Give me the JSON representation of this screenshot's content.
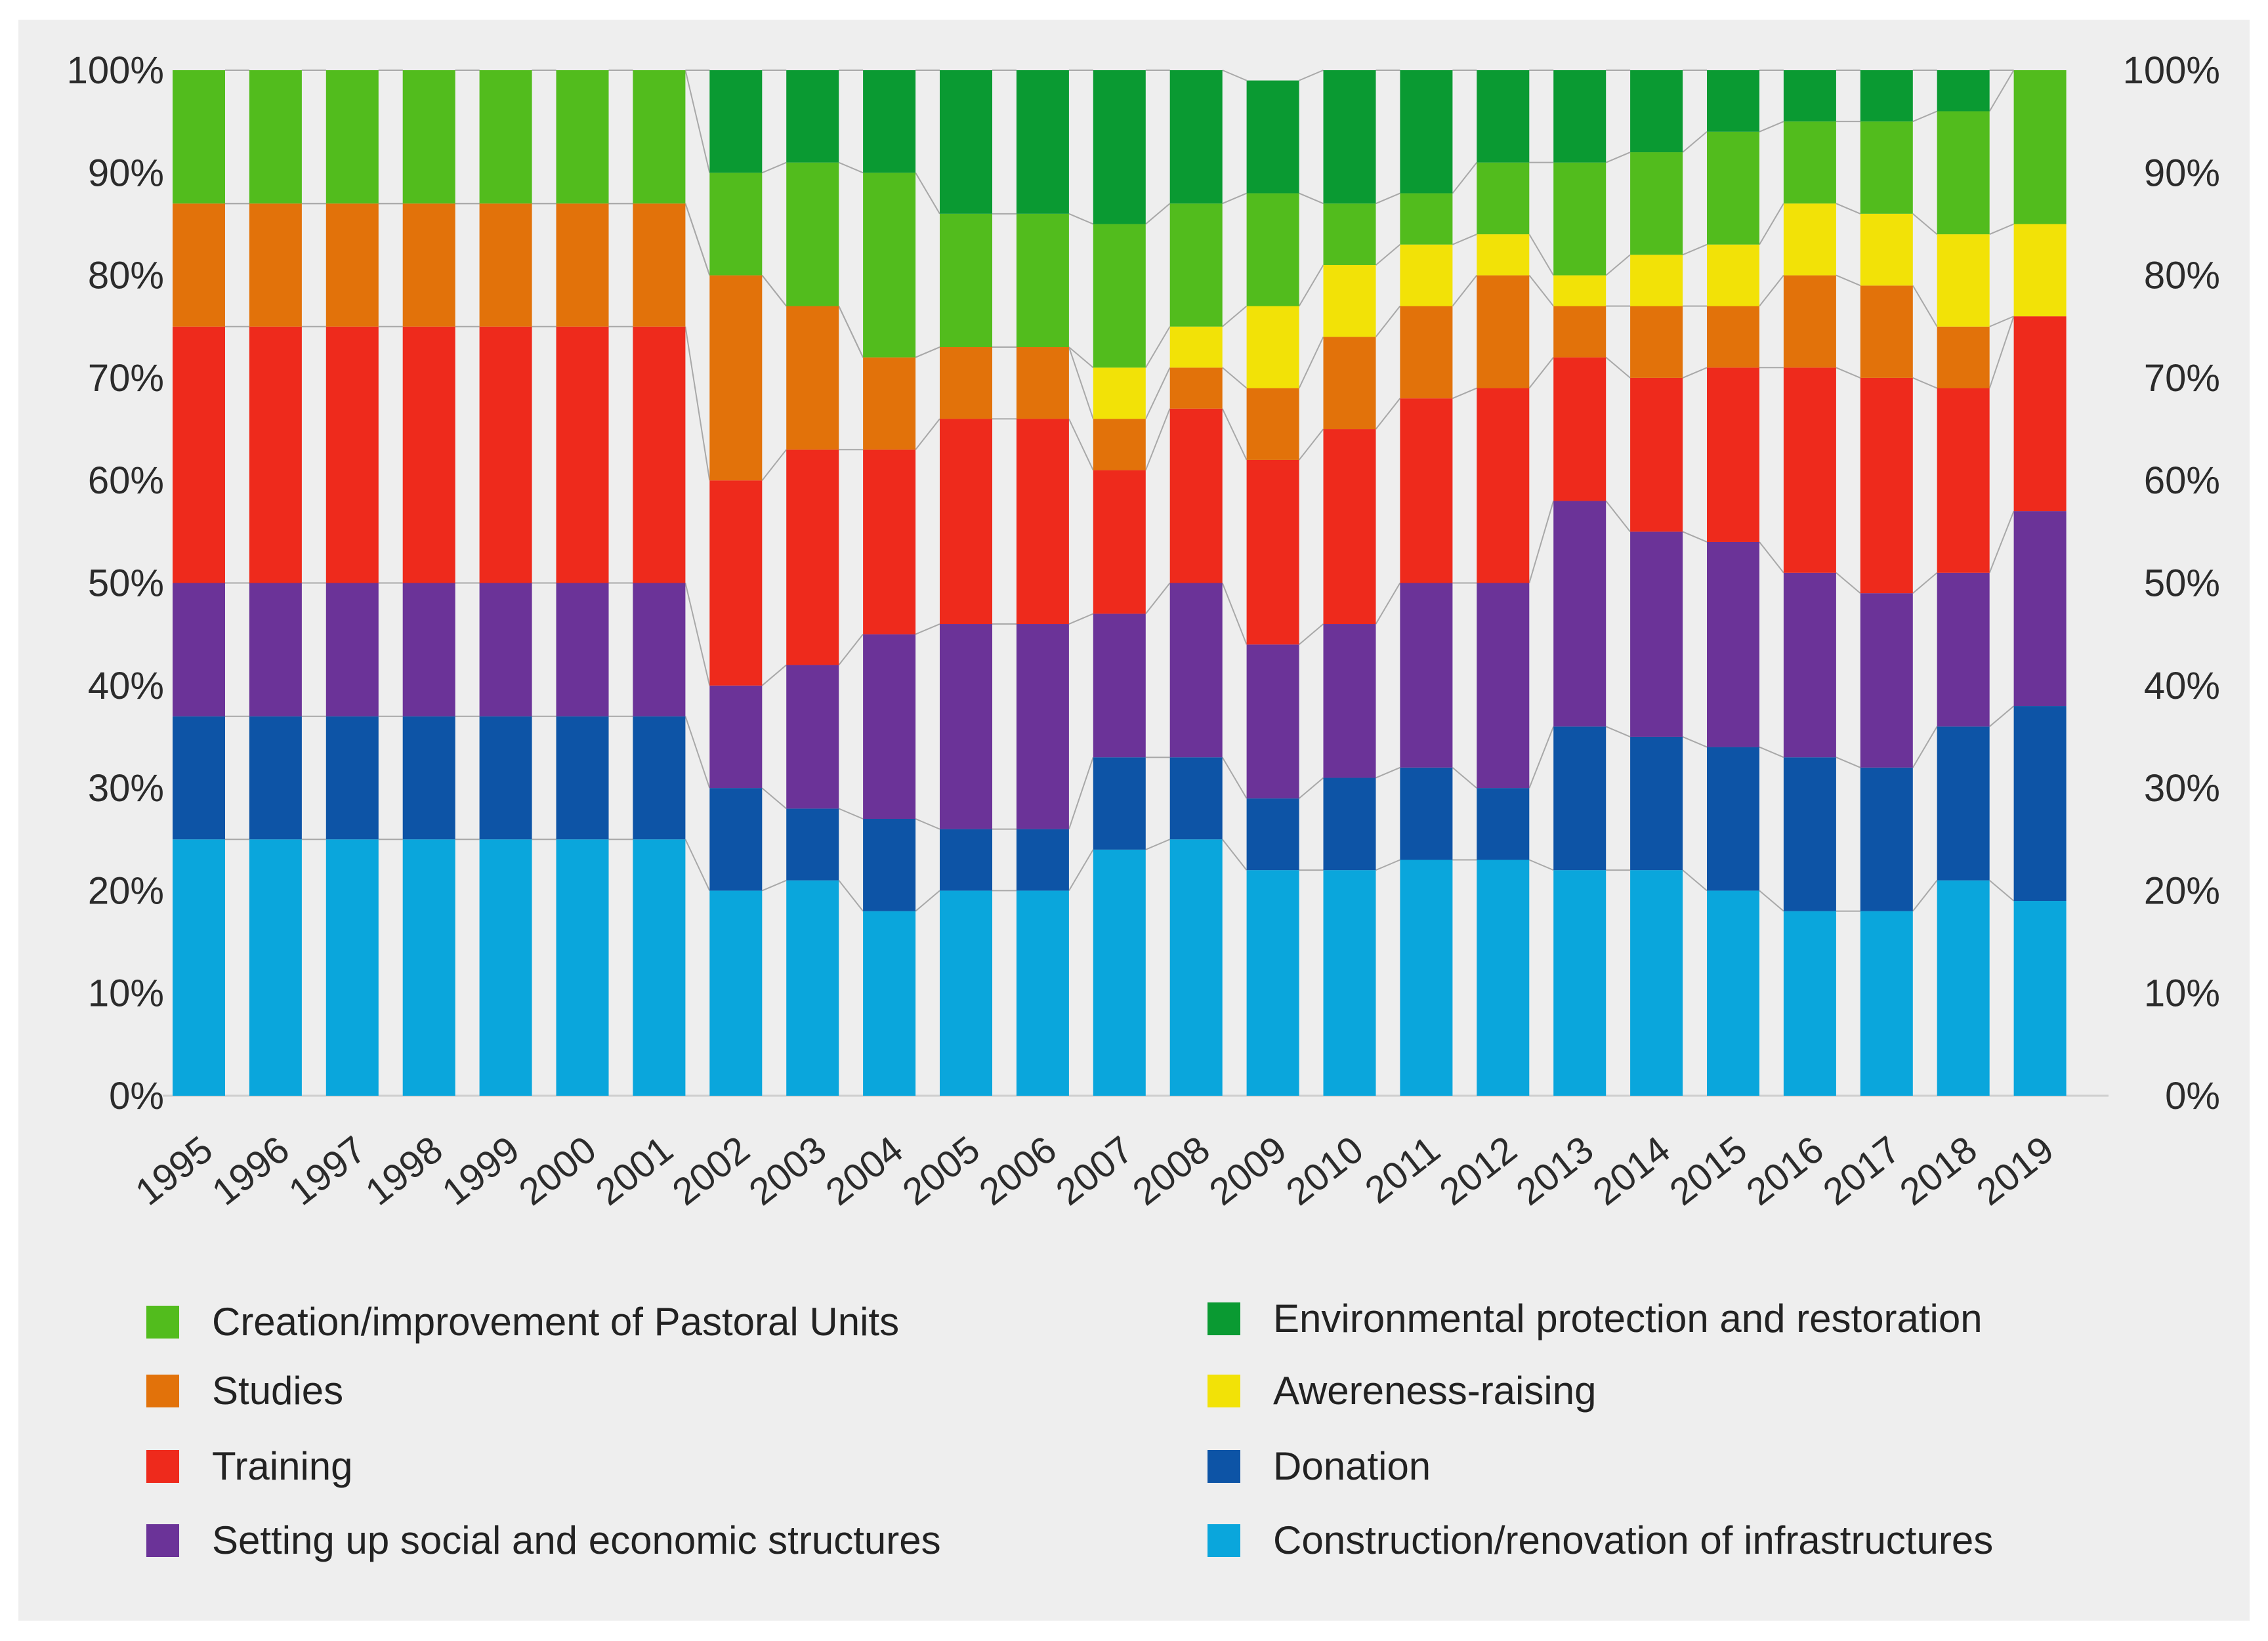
{
  "chart_data": {
    "type": "bar",
    "stacked": true,
    "normalized": true,
    "categories": [
      "1995",
      "1996",
      "1997",
      "1998",
      "1999",
      "2000",
      "2001",
      "2002",
      "2003",
      "2004",
      "2005",
      "2006",
      "2007",
      "2008",
      "2009",
      "2010",
      "2011",
      "2012",
      "2013",
      "2014",
      "2015",
      "2016",
      "2017",
      "2018",
      "2019"
    ],
    "ytick_labels": [
      "0%",
      "10%",
      "20%",
      "30%",
      "40%",
      "50%",
      "60%",
      "70%",
      "80%",
      "90%",
      "100%"
    ],
    "ylim": [
      0,
      100
    ],
    "series": [
      {
        "name": "Construction/renovation of infrastructures",
        "color": "#0aa6dc",
        "values": [
          25,
          25,
          25,
          25,
          25,
          25,
          25,
          20,
          21,
          18,
          20,
          20,
          24,
          25,
          22,
          22,
          23,
          23,
          22,
          22,
          20,
          18,
          18,
          21,
          19
        ]
      },
      {
        "name": "Donation",
        "color": "#0d54a6",
        "values": [
          12,
          12,
          12,
          12,
          12,
          12,
          12,
          10,
          7,
          9,
          6,
          6,
          9,
          8,
          7,
          9,
          9,
          7,
          14,
          13,
          14,
          15,
          14,
          15,
          19
        ]
      },
      {
        "name": "Setting up social and economic structures",
        "color": "#6b3398",
        "values": [
          13,
          13,
          13,
          13,
          13,
          13,
          13,
          10,
          14,
          18,
          20,
          20,
          14,
          17,
          15,
          15,
          18,
          20,
          22,
          20,
          20,
          18,
          17,
          15,
          19
        ]
      },
      {
        "name": "Training",
        "color": "#ee2a1c",
        "values": [
          25,
          25,
          25,
          25,
          25,
          25,
          25,
          20,
          21,
          18,
          20,
          20,
          14,
          17,
          18,
          19,
          18,
          19,
          14,
          15,
          17,
          20,
          21,
          18,
          19
        ]
      },
      {
        "name": "Studies",
        "color": "#e2720a",
        "values": [
          12,
          12,
          12,
          12,
          12,
          12,
          12,
          20,
          14,
          9,
          7,
          7,
          5,
          4,
          7,
          9,
          9,
          11,
          5,
          7,
          6,
          9,
          9,
          6,
          0
        ]
      },
      {
        "name": "Awereness-raising",
        "color": "#f2e207",
        "values": [
          0,
          0,
          0,
          0,
          0,
          0,
          0,
          0,
          0,
          0,
          0,
          0,
          5,
          4,
          8,
          7,
          6,
          4,
          3,
          5,
          6,
          7,
          7,
          9,
          9
        ]
      },
      {
        "name": "Creation/improvement of Pastoral Units",
        "color": "#52bc1d",
        "values": [
          13,
          13,
          13,
          13,
          13,
          13,
          13,
          10,
          14,
          18,
          13,
          13,
          14,
          12,
          11,
          6,
          5,
          7,
          11,
          10,
          11,
          8,
          9,
          12,
          15
        ]
      },
      {
        "name": "Environmental protection and restoration",
        "color": "#0a9a32",
        "values": [
          0,
          0,
          0,
          0,
          0,
          0,
          0,
          10,
          9,
          10,
          14,
          14,
          15,
          13,
          11,
          13,
          12,
          9,
          9,
          8,
          6,
          5,
          5,
          4,
          0
        ]
      }
    ],
    "legend_position": "bottom"
  },
  "legend": {
    "left": [
      {
        "label": "Creation/improvement of Pastoral Units",
        "color": "#52bc1d"
      },
      {
        "label": "Studies",
        "color": "#e2720a"
      },
      {
        "label": "Training",
        "color": "#ee2a1c"
      },
      {
        "label": "Setting up social and economic structures",
        "color": "#6b3398"
      }
    ],
    "right": [
      {
        "label": "Environmental protection and restoration",
        "color": "#0a9a32"
      },
      {
        "label": "Awereness-raising",
        "color": "#f2e207"
      },
      {
        "label": "Donation",
        "color": "#0d54a6"
      },
      {
        "label": "Construction/renovation of infrastructures",
        "color": "#0aa6dc"
      }
    ]
  }
}
